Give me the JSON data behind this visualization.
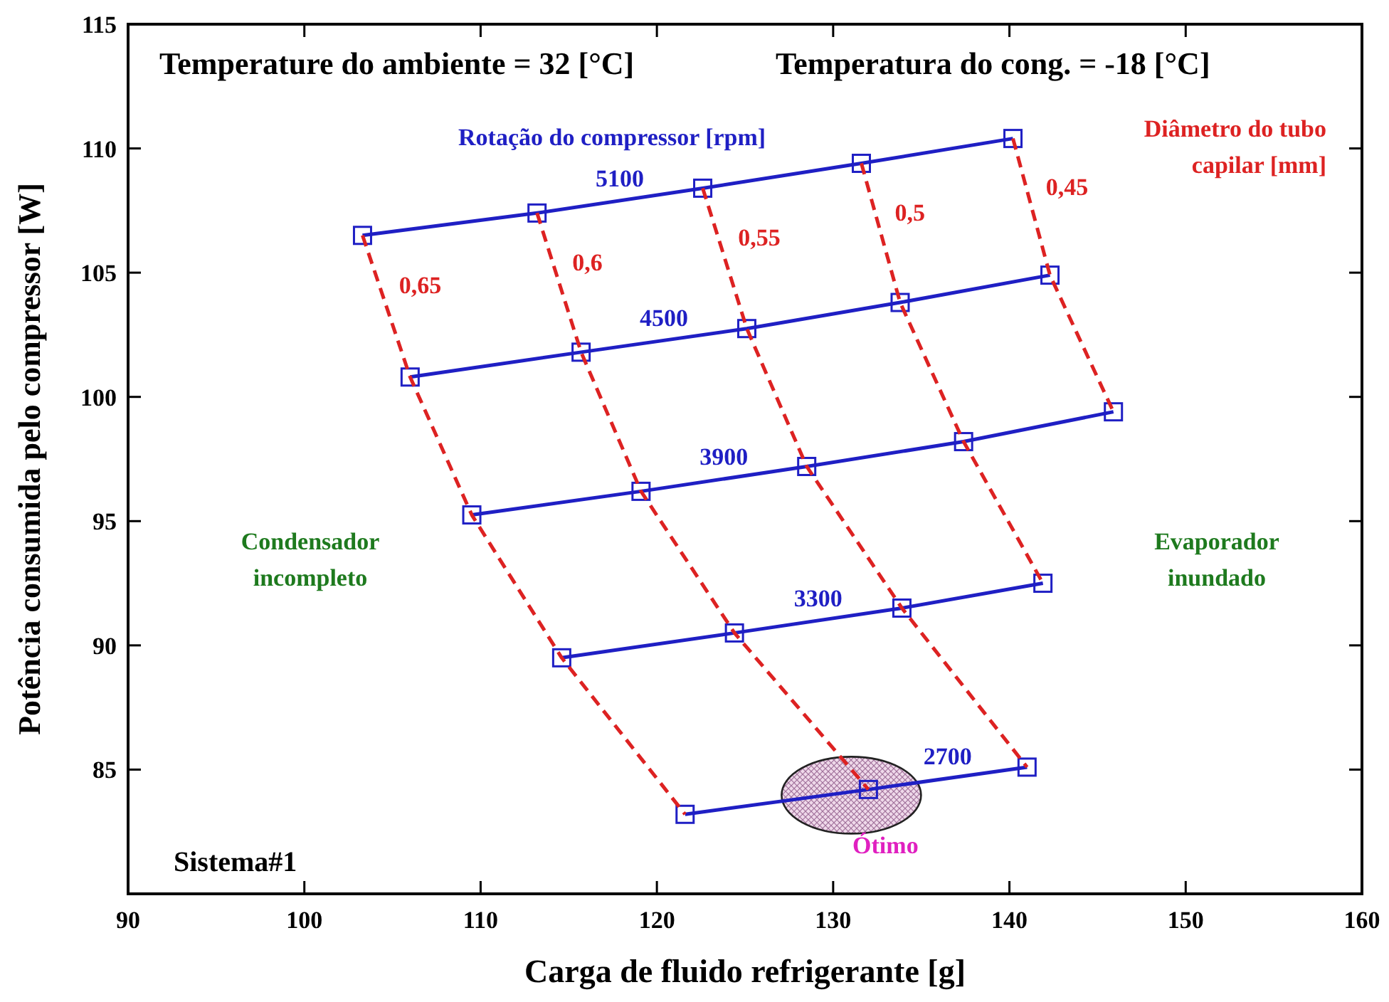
{
  "chart_data": {
    "type": "line",
    "xlabel": "Carga de fluido refrigerante [g]",
    "ylabel": "Potência consumida pelo compressor [W]",
    "xlim": [
      90,
      160
    ],
    "xticks": [
      90,
      100,
      110,
      120,
      130,
      140,
      150,
      160
    ],
    "ylim": [
      80,
      115
    ],
    "yticks": [
      {
        "value": 80,
        "label": null
      },
      85,
      90,
      95,
      100,
      105,
      110,
      115
    ],
    "grid": false,
    "series": [
      {
        "name": "5100",
        "color": "#1f1fc4",
        "marker": "square",
        "line_style": "solid",
        "x": [
          103.3,
          113.2,
          122.6,
          131.6,
          140.2
        ],
        "values": [
          106.5,
          107.4,
          108.4,
          109.4,
          110.4
        ]
      },
      {
        "name": "4500",
        "color": "#1f1fc4",
        "marker": "square",
        "line_style": "solid",
        "x": [
          106.0,
          115.7,
          125.1,
          133.8,
          142.3
        ],
        "values": [
          100.8,
          101.8,
          102.75,
          103.8,
          104.9
        ]
      },
      {
        "name": "3900",
        "color": "#1f1fc4",
        "marker": "square",
        "line_style": "solid",
        "x": [
          109.5,
          119.1,
          128.5,
          137.4,
          145.9
        ],
        "values": [
          95.25,
          96.2,
          97.2,
          98.2,
          99.4
        ]
      },
      {
        "name": "3300",
        "color": "#1f1fc4",
        "marker": "square",
        "line_style": "solid",
        "x": [
          114.6,
          124.4,
          133.9,
          141.9
        ],
        "values": [
          89.5,
          90.5,
          91.5,
          92.5
        ]
      },
      {
        "name": "2700",
        "color": "#1f1fc4",
        "marker": "square",
        "line_style": "solid",
        "x": [
          121.6,
          132.0,
          141.0
        ],
        "values": [
          83.2,
          84.2,
          85.1
        ]
      },
      {
        "name": "0,65",
        "color": "#dd2222",
        "marker": "none",
        "line_style": "dashed",
        "x": [
          103.3,
          106.0,
          109.5,
          114.6,
          121.6
        ],
        "values": [
          106.5,
          100.8,
          95.25,
          89.5,
          83.2
        ]
      },
      {
        "name": "0,6",
        "color": "#dd2222",
        "marker": "none",
        "line_style": "dashed",
        "x": [
          113.2,
          115.7,
          119.1,
          124.4,
          132.0
        ],
        "values": [
          107.4,
          101.8,
          96.2,
          90.5,
          84.2
        ]
      },
      {
        "name": "0,55",
        "color": "#dd2222",
        "marker": "none",
        "line_style": "dashed",
        "x": [
          122.6,
          125.1,
          128.5,
          133.9,
          141.0
        ],
        "values": [
          108.4,
          102.75,
          97.2,
          91.5,
          85.1
        ]
      },
      {
        "name": "0,5",
        "color": "#dd2222",
        "marker": "none",
        "line_style": "dashed",
        "x": [
          131.6,
          133.8,
          137.4,
          141.9
        ],
        "values": [
          109.4,
          103.8,
          98.2,
          92.5
        ]
      },
      {
        "name": "0,45",
        "color": "#dd2222",
        "marker": "none",
        "line_style": "dashed",
        "x": [
          140.2,
          142.3,
          145.9
        ],
        "values": [
          110.4,
          104.9,
          99.4
        ]
      }
    ],
    "annotations": [
      "Temperature do ambiente = 32 [°C]",
      "Temperatura do cong. = -18 [°C]",
      "Rotação do compressor [rpm]",
      "Diâmetro do tubo capilar [mm]",
      "Condensador incompleto",
      "Evaporador inundado",
      "Sistema#1",
      {
        "text": "Ótimo",
        "x": 132.0,
        "y": 84.2
      }
    ]
  }
}
